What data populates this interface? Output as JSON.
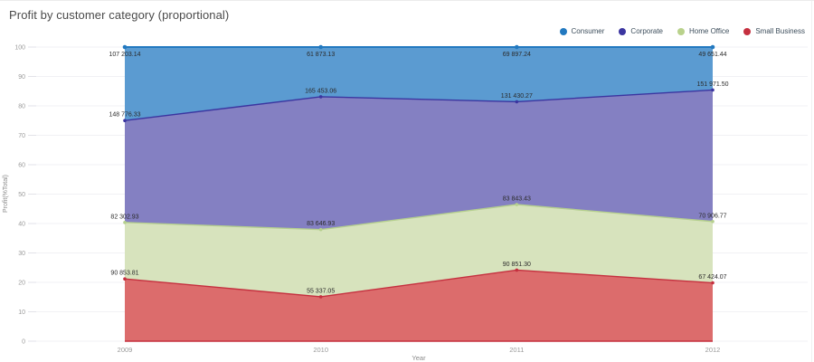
{
  "page": {
    "title": "Profit by customer category (proportional)"
  },
  "colors": {
    "consumer_fill": "#5b9bd1",
    "consumer_line": "#2279c0",
    "corporate_fill": "#8480c2",
    "corporate_line": "#3b35a0",
    "home_office_fill": "#d7e3bd",
    "home_office_line": "#b5cf8e",
    "small_business_fill": "#dc6c6c",
    "small_business_line": "#c5303f",
    "grid": "#f1f1f4",
    "tick": "#e2e2e8",
    "axis_text": "#9a9a9a",
    "label_text": "#2b2b2b"
  },
  "chart_data": {
    "type": "area",
    "stacking": "percent",
    "title": "Profit by customer category (proportional)",
    "x": [
      "2009",
      "2010",
      "2011",
      "2012"
    ],
    "xlabel": "Year",
    "ylabel": "Profit(%Total)",
    "ylim": [
      0,
      100
    ],
    "yticks": [
      "0",
      "10",
      "20",
      "30",
      "40",
      "50",
      "60",
      "70",
      "80",
      "90",
      "100"
    ],
    "grid": true,
    "legend_position": "top-right",
    "legend": [
      {
        "label": "Consumer",
        "color": "#2279c0"
      },
      {
        "label": "Corporate",
        "color": "#3b35a0"
      },
      {
        "label": "Home Office",
        "color": "#b9d28c"
      },
      {
        "label": "Small Business",
        "color": "#c5303f"
      }
    ],
    "series": [
      {
        "name": "Small Business",
        "fill": "#dc6c6c",
        "line": "#c5303f",
        "values": [
          90853.81,
          55337.05,
          90851.3,
          67424.07
        ],
        "labels": [
          "90 853.81",
          "55 337.05",
          "90 851.30",
          "67 424.07"
        ]
      },
      {
        "name": "Home Office",
        "fill": "#d7e3bd",
        "line": "#b5cf8e",
        "values": [
          82302.93,
          83646.93,
          83843.43,
          70906.77
        ],
        "labels": [
          "82 302.93",
          "83 646.93",
          "83 843.43",
          "70 906.77"
        ]
      },
      {
        "name": "Corporate",
        "fill": "#8480c2",
        "line": "#3b35a0",
        "values": [
          148776.33,
          165453.06,
          131430.27,
          151971.5
        ],
        "labels": [
          "148 776.33",
          "165 453.06",
          "131 430.27",
          "151 971.50"
        ]
      },
      {
        "name": "Consumer",
        "fill": "#5b9bd1",
        "line": "#2279c0",
        "values": [
          107203.14,
          61873.13,
          69897.24,
          49651.44
        ],
        "labels": [
          "107 203.14",
          "61 873.13",
          "69 897.24",
          "49 651.44"
        ]
      }
    ]
  }
}
